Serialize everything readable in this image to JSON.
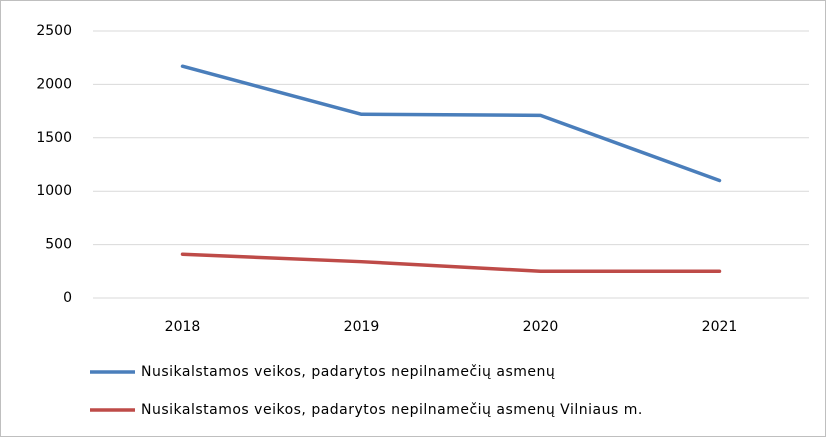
{
  "chart_data": {
    "type": "line",
    "categories": [
      "2018",
      "2019",
      "2020",
      "2021"
    ],
    "series": [
      {
        "name": "Nusikalstamos veikos, padarytos nepilnamečių asmenų",
        "color": "#4a7ebb",
        "values": [
          2170,
          1720,
          1710,
          1100
        ]
      },
      {
        "name": "Nusikalstamos veikos, padarytos nepilnamečių asmenų Vilniaus m.",
        "color": "#be4b48",
        "values": [
          410,
          340,
          250,
          250
        ]
      }
    ],
    "ylim": [
      0,
      2500
    ],
    "yticks": [
      0,
      500,
      1000,
      1500,
      2000,
      2500
    ],
    "grid": true,
    "legend": "bottom"
  }
}
